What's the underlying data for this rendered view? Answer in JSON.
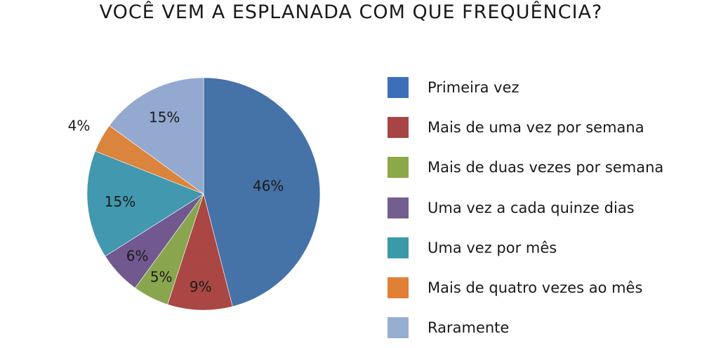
{
  "chart_data": {
    "type": "pie",
    "title": "VOCÊ VEM A ESPLANADA COM QUE FREQUÊNCIA?",
    "legend_position": "right",
    "categories": [
      "Primeira vez",
      "Mais de uma vez por semana",
      "Mais de duas vezes por semana",
      "Uma vez a cada quinze dias",
      "Uma vez por mês",
      "Mais de quatro vezes ao mês",
      "Raramente"
    ],
    "values": [
      46,
      9,
      5,
      6,
      15,
      4,
      15
    ],
    "labels": [
      "46%",
      "9%",
      "5%",
      "6%",
      "15%",
      "4%",
      "15%"
    ],
    "colors": [
      "#4572a7",
      "#aa4643",
      "#89a54e",
      "#71588f",
      "#4198af",
      "#db843d",
      "#93a9cf"
    ],
    "legend_colors": [
      "#3c6fba",
      "#a64543",
      "#8ca848",
      "#725f8f",
      "#3a9aa8",
      "#e07f35",
      "#97aed2"
    ]
  }
}
